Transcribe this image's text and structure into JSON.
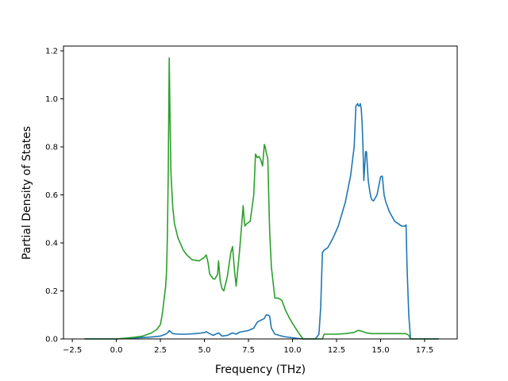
{
  "chart_data": {
    "type": "line",
    "title": "",
    "xlabel": "Frequency (THz)",
    "ylabel": "Partial Density of States",
    "xlim": [
      -3.0,
      19.35
    ],
    "ylim": [
      0,
      1.22
    ],
    "xticks": [
      -2.5,
      0.0,
      2.5,
      5.0,
      7.5,
      10.0,
      12.5,
      15.0,
      17.5
    ],
    "xtick_labels": [
      "−2.5",
      "0.0",
      "2.5",
      "5.0",
      "7.5",
      "10.0",
      "12.5",
      "15.0",
      "17.5"
    ],
    "yticks": [
      0.0,
      0.2,
      0.4,
      0.6,
      0.8,
      1.0,
      1.2
    ],
    "ytick_labels": [
      "0.0",
      "0.2",
      "0.4",
      "0.6",
      "0.8",
      "1.0",
      "1.2"
    ],
    "grid": false,
    "legend": "none",
    "series": [
      {
        "color": "#1f77b4",
        "x": [
          -1.8,
          -1.0,
          0.0,
          0.5,
          1.0,
          1.5,
          2.0,
          2.5,
          2.8,
          2.95,
          3.0,
          3.2,
          3.5,
          4.0,
          4.5,
          5.0,
          5.1,
          5.3,
          5.5,
          5.8,
          6.0,
          6.3,
          6.6,
          6.8,
          7.0,
          7.5,
          7.8,
          8.0,
          8.2,
          8.4,
          8.5,
          8.6,
          8.7,
          8.8,
          9.0,
          9.5,
          10.0,
          10.3,
          10.6,
          11.0,
          11.3,
          11.5,
          11.6,
          11.7,
          11.8,
          12.0,
          12.3,
          12.6,
          13.0,
          13.3,
          13.5,
          13.6,
          13.7,
          13.75,
          13.8,
          13.85,
          13.9,
          13.95,
          14.0,
          14.05,
          14.1,
          14.15,
          14.2,
          14.3,
          14.4,
          14.45,
          14.5,
          14.6,
          14.8,
          15.0,
          15.1,
          15.2,
          15.3,
          15.4,
          15.5,
          15.8,
          16.0,
          16.2,
          16.4,
          16.45,
          16.5,
          16.6,
          16.7,
          17.0,
          17.5,
          18.3
        ],
        "y": [
          0.0,
          0.0,
          0.0,
          0.002,
          0.004,
          0.006,
          0.008,
          0.012,
          0.02,
          0.028,
          0.035,
          0.022,
          0.02,
          0.02,
          0.022,
          0.026,
          0.03,
          0.022,
          0.015,
          0.025,
          0.012,
          0.015,
          0.025,
          0.02,
          0.028,
          0.035,
          0.045,
          0.07,
          0.078,
          0.085,
          0.1,
          0.1,
          0.095,
          0.045,
          0.02,
          0.01,
          0.005,
          0.002,
          0.0,
          0.0,
          0.0,
          0.02,
          0.13,
          0.36,
          0.37,
          0.38,
          0.42,
          0.47,
          0.57,
          0.68,
          0.8,
          0.97,
          0.98,
          0.97,
          0.97,
          0.98,
          0.96,
          0.9,
          0.8,
          0.66,
          0.72,
          0.78,
          0.78,
          0.66,
          0.61,
          0.59,
          0.58,
          0.575,
          0.6,
          0.675,
          0.678,
          0.6,
          0.57,
          0.55,
          0.53,
          0.49,
          0.48,
          0.47,
          0.47,
          0.475,
          0.3,
          0.1,
          0.0,
          0.0,
          0.0,
          0.0
        ]
      },
      {
        "color": "#2ca02c",
        "x": [
          -1.8,
          -1.0,
          0.0,
          0.5,
          1.0,
          1.5,
          2.0,
          2.3,
          2.5,
          2.6,
          2.7,
          2.8,
          2.85,
          2.9,
          2.95,
          3.0,
          3.05,
          3.1,
          3.2,
          3.3,
          3.5,
          3.8,
          4.0,
          4.3,
          4.7,
          5.0,
          5.1,
          5.2,
          5.3,
          5.5,
          5.6,
          5.75,
          5.8,
          5.9,
          6.0,
          6.1,
          6.3,
          6.5,
          6.6,
          6.7,
          6.8,
          7.0,
          7.2,
          7.25,
          7.3,
          7.4,
          7.6,
          7.8,
          7.9,
          8.0,
          8.1,
          8.2,
          8.3,
          8.4,
          8.45,
          8.5,
          8.6,
          8.7,
          8.8,
          9.0,
          9.2,
          9.4,
          9.6,
          9.8,
          10.0,
          10.3,
          10.6,
          10.9,
          11.2,
          11.5,
          11.7,
          11.8,
          12.0,
          12.5,
          13.0,
          13.5,
          13.7,
          13.8,
          14.0,
          14.2,
          14.5,
          15.0,
          15.5,
          16.0,
          16.4,
          16.5,
          16.6,
          16.7,
          17.0,
          17.5,
          18.3
        ],
        "y": [
          0.0,
          0.0,
          0.0,
          0.003,
          0.007,
          0.012,
          0.025,
          0.04,
          0.06,
          0.1,
          0.16,
          0.22,
          0.28,
          0.43,
          0.7,
          1.17,
          0.9,
          0.69,
          0.55,
          0.48,
          0.42,
          0.37,
          0.35,
          0.33,
          0.325,
          0.34,
          0.35,
          0.32,
          0.27,
          0.25,
          0.25,
          0.27,
          0.325,
          0.24,
          0.21,
          0.2,
          0.26,
          0.36,
          0.385,
          0.29,
          0.22,
          0.37,
          0.555,
          0.5,
          0.47,
          0.48,
          0.49,
          0.6,
          0.77,
          0.755,
          0.76,
          0.745,
          0.72,
          0.81,
          0.8,
          0.78,
          0.75,
          0.45,
          0.3,
          0.17,
          0.17,
          0.16,
          0.12,
          0.09,
          0.065,
          0.03,
          0.0,
          0.0,
          0.0,
          0.0,
          0.0,
          0.02,
          0.02,
          0.02,
          0.022,
          0.027,
          0.035,
          0.035,
          0.03,
          0.025,
          0.022,
          0.022,
          0.022,
          0.022,
          0.022,
          0.02,
          0.015,
          0.0,
          0.0,
          0.0,
          0.0
        ]
      }
    ]
  }
}
